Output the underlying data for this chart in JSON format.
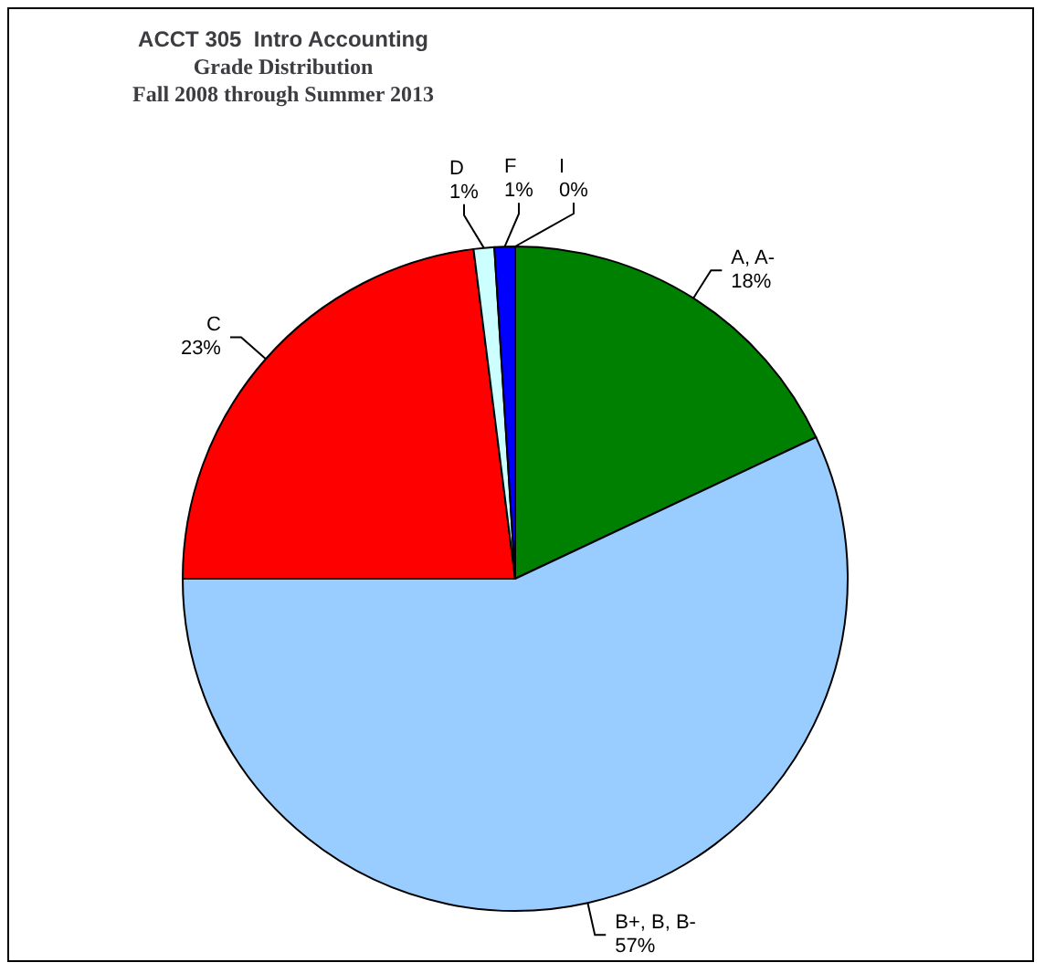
{
  "chart_data": {
    "type": "pie",
    "title": "ACCT 305  Intro Accounting\nGrade Distribution\nFall 2008 through Summer 2013",
    "categories": [
      "A, A-",
      "B+, B, B-",
      "C",
      "D",
      "F",
      "I"
    ],
    "values": [
      18,
      57,
      23,
      1,
      1,
      0
    ],
    "colors": [
      "#008000",
      "#99ccff",
      "#ff0000",
      "#ccffff",
      "#0000ff",
      "#ffffff"
    ],
    "value_labels": [
      "18%",
      "57%",
      "23%",
      "1%",
      "1%",
      "0%"
    ],
    "legend": false
  }
}
